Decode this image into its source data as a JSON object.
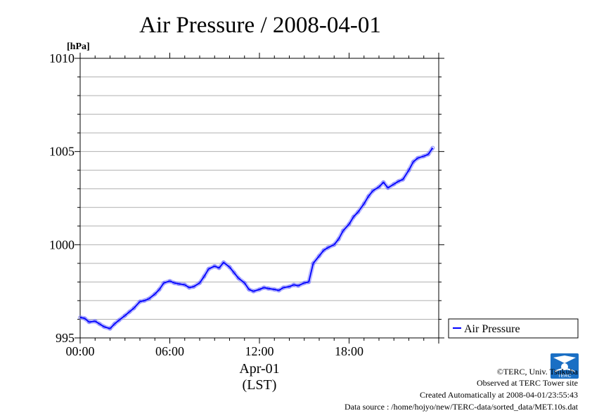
{
  "chart_data": {
    "type": "line",
    "title": "Air Pressure / 2008-04-01",
    "yunit": "[hPa]",
    "ylim": [
      995,
      1010
    ],
    "yticks": [
      "995",
      "1000",
      "1005",
      "1010"
    ],
    "xlim": [
      0,
      24
    ],
    "xticks": [
      "00:00",
      "06:00",
      "12:00",
      "18:00"
    ],
    "xlabel_date": "Apr-01",
    "xlabel_zone": "(LST)",
    "grid": true,
    "legend": "right",
    "series": [
      {
        "name": "Air Pressure",
        "color": "#0000ff",
        "marker_color": "#8080ff",
        "x": [
          0.0,
          0.3,
          0.6,
          1.0,
          1.3,
          1.6,
          2.0,
          2.3,
          2.6,
          3.0,
          3.3,
          3.6,
          4.0,
          4.3,
          4.6,
          5.0,
          5.3,
          5.6,
          6.0,
          6.3,
          6.6,
          7.0,
          7.3,
          7.6,
          8.0,
          8.3,
          8.6,
          9.0,
          9.3,
          9.6,
          10.0,
          10.3,
          10.6,
          11.0,
          11.3,
          11.6,
          12.0,
          12.3,
          12.6,
          13.0,
          13.3,
          13.6,
          14.0,
          14.3,
          14.6,
          15.0,
          15.3,
          15.6,
          16.0,
          16.3,
          16.6,
          17.0,
          17.3,
          17.6,
          18.0,
          18.3,
          18.6,
          19.0,
          19.3,
          19.6,
          20.0,
          20.3,
          20.6,
          21.0,
          21.3,
          21.6,
          22.0,
          22.3,
          22.6,
          23.0,
          23.3,
          23.6
        ],
        "y": [
          996.1,
          996.05,
          995.85,
          995.9,
          995.75,
          995.6,
          995.5,
          995.75,
          995.95,
          996.2,
          996.4,
          996.6,
          996.95,
          997.0,
          997.1,
          997.35,
          997.6,
          997.95,
          998.05,
          997.95,
          997.9,
          997.85,
          997.7,
          997.75,
          997.95,
          998.3,
          998.7,
          998.85,
          998.75,
          999.05,
          998.8,
          998.5,
          998.2,
          997.95,
          997.6,
          997.5,
          997.6,
          997.7,
          997.65,
          997.6,
          997.55,
          997.7,
          997.75,
          997.85,
          997.8,
          997.95,
          998.0,
          999.0,
          999.4,
          999.7,
          999.85,
          1000.0,
          1000.3,
          1000.75,
          1001.1,
          1001.5,
          1001.75,
          1002.2,
          1002.6,
          1002.9,
          1003.1,
          1003.35,
          1003.05,
          1003.25,
          1003.4,
          1003.5,
          1004.0,
          1004.45,
          1004.65,
          1004.75,
          1004.85,
          1005.2
        ]
      }
    ]
  },
  "credits": {
    "copyright": "©TERC, Univ. Tsukuba",
    "observed": "Observed at TERC Tower site",
    "created": "Created Automatically at 2008-04-01/23:55:43",
    "source": "Data source : /home/hojyo/new/TERC-data/sorted_data/MET.10s.dat",
    "logo_text": "TERC",
    "logo_color": "#1a6fc4"
  }
}
